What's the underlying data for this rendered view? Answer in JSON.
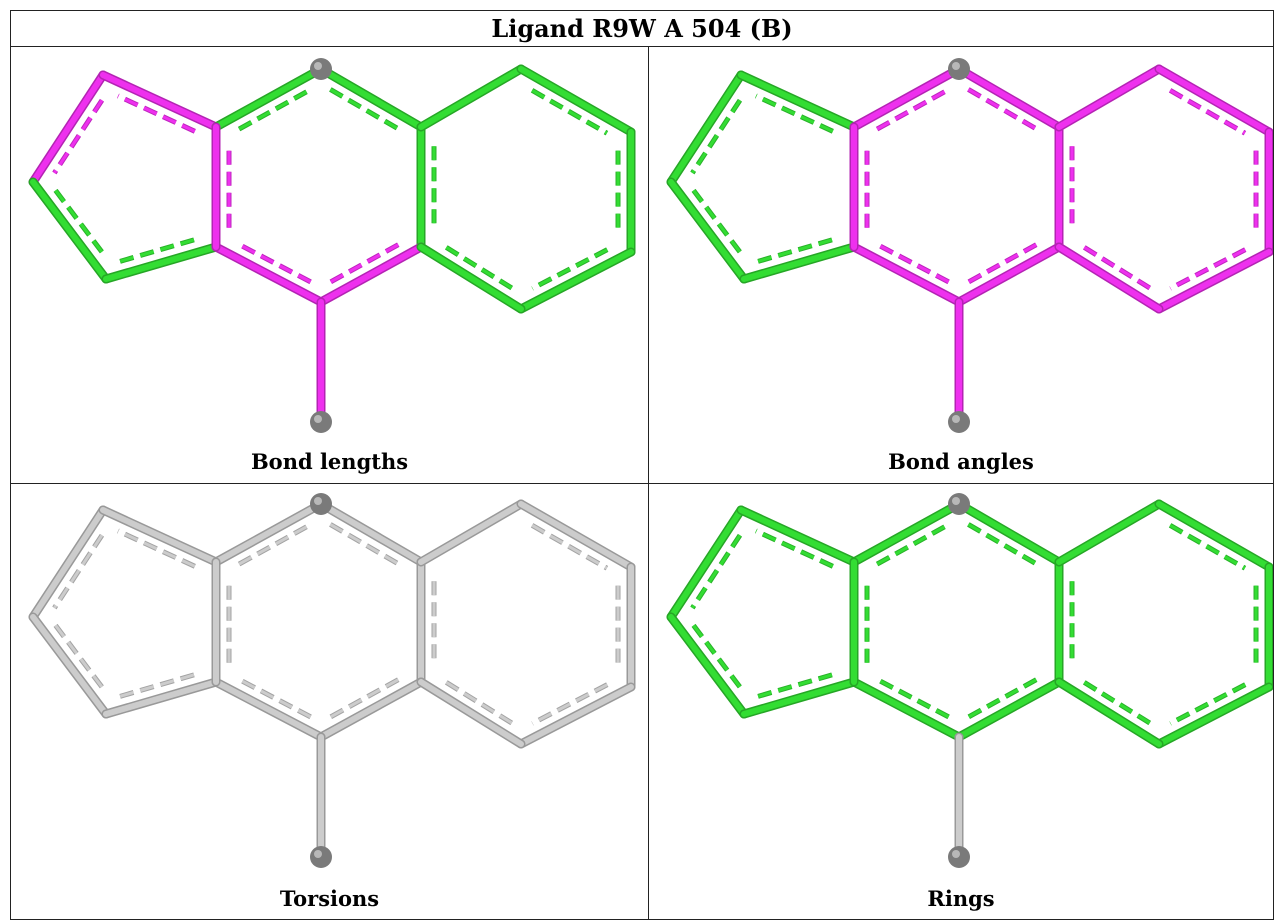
{
  "title": "Ligand R9W A 504 (B)",
  "panels": [
    {
      "caption": "Bond lengths",
      "colors": {
        "pent": "#ee30ee",
        "pent_alt": "#33dd33",
        "b1": "#33dd33",
        "b2": "#33dd33",
        "b3": "#ee30ee",
        "center_bottom": "#ee30ee",
        "right": "#33dd33",
        "fused_left": "#ee30ee",
        "fused_right": "#33dd33",
        "sub": "#ee30ee"
      }
    },
    {
      "caption": "Bond angles",
      "colors": {
        "pent": "#33dd33",
        "pent_alt": "#33dd33",
        "b1": "#ee30ee",
        "b2": "#ee30ee",
        "b3": "#ee30ee",
        "center_bottom": "#ee30ee",
        "right": "#ee30ee",
        "fused_left": "#ee30ee",
        "fused_right": "#ee30ee",
        "sub": "#ee30ee"
      }
    },
    {
      "caption": "Torsions",
      "colors": {
        "pent": "#cccccc",
        "pent_alt": "#cccccc",
        "b1": "#cccccc",
        "b2": "#cccccc",
        "b3": "#cccccc",
        "center_bottom": "#cccccc",
        "right": "#cccccc",
        "fused_left": "#cccccc",
        "fused_right": "#cccccc",
        "sub": "#cccccc"
      }
    },
    {
      "caption": "Rings",
      "colors": {
        "pent": "#33dd33",
        "pent_alt": "#33dd33",
        "b1": "#33dd33",
        "b2": "#33dd33",
        "b3": "#33dd33",
        "center_bottom": "#33dd33",
        "right": "#33dd33",
        "fused_left": "#33dd33",
        "fused_right": "#33dd33",
        "sub": "#cccccc"
      }
    }
  ]
}
